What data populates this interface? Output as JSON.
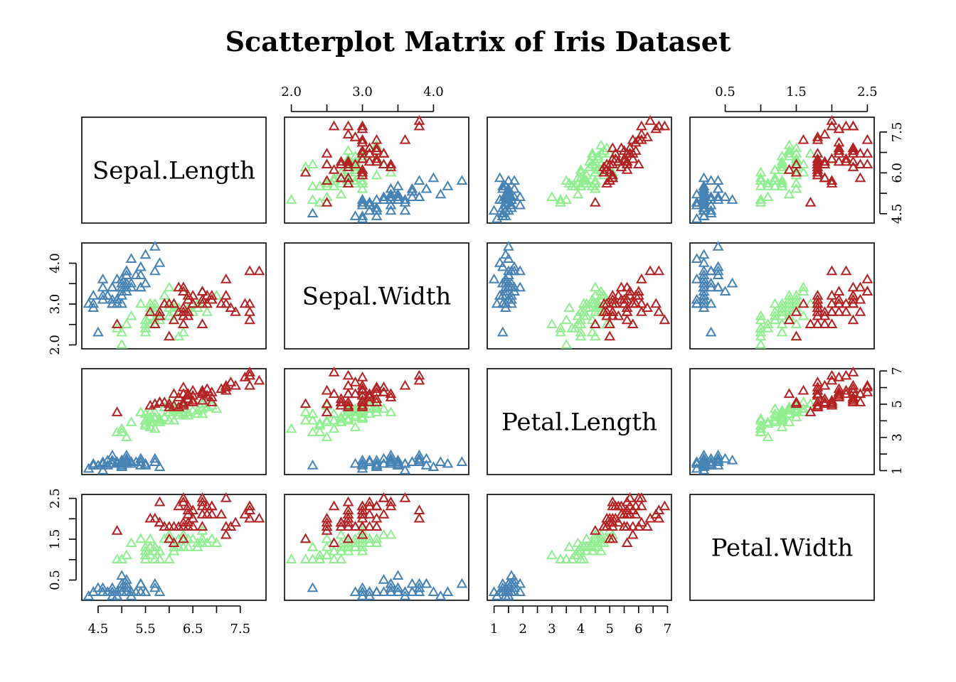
{
  "chart_data": {
    "type": "scatter",
    "title": "Scatterplot Matrix of Iris Dataset",
    "variables": [
      "Sepal.Length",
      "Sepal.Width",
      "Petal.Length",
      "Petal.Width"
    ],
    "ranges": [
      [
        4.3,
        7.9
      ],
      [
        2.0,
        4.4
      ],
      [
        1.0,
        6.9
      ],
      [
        0.1,
        2.5
      ]
    ],
    "ticks": {
      "Sepal.Length": [
        "4.5",
        "5.5",
        "6.5",
        "7.5"
      ],
      "Sepal.Length_right": [
        "4.5",
        "6.0",
        "7.5"
      ],
      "Sepal.Width": [
        "2.0",
        "3.0",
        "4.0"
      ],
      "Petal.Length": [
        "1",
        "2",
        "3",
        "4",
        "5",
        "6",
        "7"
      ],
      "Petal.Length_right": [
        "1",
        "3",
        "5",
        "7"
      ],
      "Petal.Width": [
        "0.5",
        "1.5",
        "2.5"
      ]
    },
    "marker": "triangle-open",
    "series": [
      {
        "color": "#4682B4",
        "points": [
          [
            5.1,
            3.5,
            1.4,
            0.2
          ],
          [
            4.9,
            3.0,
            1.4,
            0.2
          ],
          [
            4.7,
            3.2,
            1.3,
            0.2
          ],
          [
            4.6,
            3.1,
            1.5,
            0.2
          ],
          [
            5.0,
            3.6,
            1.4,
            0.2
          ],
          [
            5.4,
            3.9,
            1.7,
            0.4
          ],
          [
            4.6,
            3.4,
            1.4,
            0.3
          ],
          [
            5.0,
            3.4,
            1.5,
            0.2
          ],
          [
            4.4,
            2.9,
            1.4,
            0.2
          ],
          [
            4.9,
            3.1,
            1.5,
            0.1
          ],
          [
            5.4,
            3.7,
            1.5,
            0.2
          ],
          [
            4.8,
            3.4,
            1.6,
            0.2
          ],
          [
            4.8,
            3.0,
            1.4,
            0.1
          ],
          [
            4.3,
            3.0,
            1.1,
            0.1
          ],
          [
            5.8,
            4.0,
            1.2,
            0.2
          ],
          [
            5.7,
            4.4,
            1.5,
            0.4
          ],
          [
            5.4,
            3.9,
            1.3,
            0.4
          ],
          [
            5.1,
            3.5,
            1.4,
            0.3
          ],
          [
            5.7,
            3.8,
            1.7,
            0.3
          ],
          [
            5.1,
            3.8,
            1.5,
            0.3
          ],
          [
            5.4,
            3.4,
            1.7,
            0.2
          ],
          [
            5.1,
            3.7,
            1.5,
            0.4
          ],
          [
            4.6,
            3.6,
            1.0,
            0.2
          ],
          [
            5.1,
            3.3,
            1.7,
            0.5
          ],
          [
            4.8,
            3.4,
            1.9,
            0.2
          ],
          [
            5.0,
            3.0,
            1.6,
            0.2
          ],
          [
            5.0,
            3.4,
            1.6,
            0.4
          ],
          [
            5.2,
            3.5,
            1.5,
            0.2
          ],
          [
            5.2,
            3.4,
            1.4,
            0.2
          ],
          [
            4.7,
            3.2,
            1.6,
            0.2
          ],
          [
            4.8,
            3.1,
            1.6,
            0.2
          ],
          [
            5.4,
            3.4,
            1.5,
            0.4
          ],
          [
            5.2,
            4.1,
            1.5,
            0.1
          ],
          [
            5.5,
            4.2,
            1.4,
            0.2
          ],
          [
            4.9,
            3.1,
            1.5,
            0.2
          ],
          [
            5.0,
            3.2,
            1.2,
            0.2
          ],
          [
            5.5,
            3.5,
            1.3,
            0.2
          ],
          [
            4.9,
            3.6,
            1.4,
            0.1
          ],
          [
            4.4,
            3.0,
            1.3,
            0.2
          ],
          [
            5.1,
            3.4,
            1.5,
            0.2
          ],
          [
            5.0,
            3.5,
            1.3,
            0.3
          ],
          [
            4.5,
            2.3,
            1.3,
            0.3
          ],
          [
            4.4,
            3.2,
            1.3,
            0.2
          ],
          [
            5.0,
            3.5,
            1.6,
            0.6
          ],
          [
            5.1,
            3.8,
            1.9,
            0.4
          ],
          [
            4.8,
            3.0,
            1.4,
            0.3
          ],
          [
            5.1,
            3.8,
            1.6,
            0.2
          ],
          [
            4.6,
            3.2,
            1.4,
            0.2
          ],
          [
            5.3,
            3.7,
            1.5,
            0.2
          ],
          [
            5.0,
            3.3,
            1.4,
            0.2
          ]
        ]
      },
      {
        "color": "#90EE90",
        "points": [
          [
            7.0,
            3.2,
            4.7,
            1.4
          ],
          [
            6.4,
            3.2,
            4.5,
            1.5
          ],
          [
            6.9,
            3.1,
            4.9,
            1.5
          ],
          [
            5.5,
            2.3,
            4.0,
            1.3
          ],
          [
            6.5,
            2.8,
            4.6,
            1.5
          ],
          [
            5.7,
            2.8,
            4.5,
            1.3
          ],
          [
            6.3,
            3.3,
            4.7,
            1.6
          ],
          [
            4.9,
            2.4,
            3.3,
            1.0
          ],
          [
            6.6,
            2.9,
            4.6,
            1.3
          ],
          [
            5.2,
            2.7,
            3.9,
            1.4
          ],
          [
            5.0,
            2.0,
            3.5,
            1.0
          ],
          [
            5.9,
            3.0,
            4.2,
            1.5
          ],
          [
            6.0,
            2.2,
            4.0,
            1.0
          ],
          [
            6.1,
            2.9,
            4.7,
            1.4
          ],
          [
            5.6,
            2.9,
            3.6,
            1.3
          ],
          [
            6.7,
            3.1,
            4.4,
            1.4
          ],
          [
            5.6,
            3.0,
            4.5,
            1.5
          ],
          [
            5.8,
            2.7,
            4.1,
            1.0
          ],
          [
            6.2,
            2.2,
            4.5,
            1.5
          ],
          [
            5.6,
            2.5,
            3.9,
            1.1
          ],
          [
            5.9,
            3.2,
            4.8,
            1.8
          ],
          [
            6.1,
            2.8,
            4.0,
            1.3
          ],
          [
            6.3,
            2.5,
            4.9,
            1.5
          ],
          [
            6.1,
            2.8,
            4.7,
            1.2
          ],
          [
            6.4,
            2.9,
            4.3,
            1.3
          ],
          [
            6.6,
            3.0,
            4.4,
            1.4
          ],
          [
            6.8,
            2.8,
            4.8,
            1.4
          ],
          [
            6.7,
            3.0,
            5.0,
            1.7
          ],
          [
            6.0,
            2.9,
            4.5,
            1.5
          ],
          [
            5.7,
            2.6,
            3.5,
            1.0
          ],
          [
            5.5,
            2.4,
            3.8,
            1.1
          ],
          [
            5.5,
            2.4,
            3.7,
            1.0
          ],
          [
            5.8,
            2.7,
            3.9,
            1.2
          ],
          [
            6.0,
            2.7,
            5.1,
            1.6
          ],
          [
            5.4,
            3.0,
            4.5,
            1.5
          ],
          [
            6.0,
            3.4,
            4.5,
            1.6
          ],
          [
            6.7,
            3.1,
            4.7,
            1.5
          ],
          [
            6.3,
            2.3,
            4.4,
            1.3
          ],
          [
            5.6,
            3.0,
            4.1,
            1.3
          ],
          [
            5.5,
            2.5,
            4.0,
            1.3
          ],
          [
            5.5,
            2.6,
            4.4,
            1.2
          ],
          [
            6.1,
            3.0,
            4.6,
            1.4
          ],
          [
            5.8,
            2.6,
            4.0,
            1.2
          ],
          [
            5.0,
            2.3,
            3.3,
            1.0
          ],
          [
            5.6,
            2.7,
            4.2,
            1.3
          ],
          [
            5.7,
            3.0,
            4.2,
            1.2
          ],
          [
            5.7,
            2.9,
            4.2,
            1.3
          ],
          [
            6.2,
            2.9,
            4.3,
            1.3
          ],
          [
            5.1,
            2.5,
            3.0,
            1.1
          ],
          [
            5.7,
            2.8,
            4.1,
            1.3
          ]
        ]
      },
      {
        "color": "#B22222",
        "points": [
          [
            6.3,
            3.3,
            6.0,
            2.5
          ],
          [
            5.8,
            2.7,
            5.1,
            1.9
          ],
          [
            7.1,
            3.0,
            5.9,
            2.1
          ],
          [
            6.3,
            2.9,
            5.6,
            1.8
          ],
          [
            6.5,
            3.0,
            5.8,
            2.2
          ],
          [
            7.6,
            3.0,
            6.6,
            2.1
          ],
          [
            4.9,
            2.5,
            4.5,
            1.7
          ],
          [
            7.3,
            2.9,
            6.3,
            1.8
          ],
          [
            6.7,
            2.5,
            5.8,
            1.8
          ],
          [
            7.2,
            3.6,
            6.1,
            2.5
          ],
          [
            6.5,
            3.2,
            5.1,
            2.0
          ],
          [
            6.4,
            2.7,
            5.3,
            1.9
          ],
          [
            6.8,
            3.0,
            5.5,
            2.1
          ],
          [
            5.7,
            2.5,
            5.0,
            2.0
          ],
          [
            5.8,
            2.8,
            5.1,
            2.4
          ],
          [
            6.4,
            3.2,
            5.3,
            2.3
          ],
          [
            6.5,
            3.0,
            5.5,
            1.8
          ],
          [
            7.7,
            3.8,
            6.7,
            2.2
          ],
          [
            7.7,
            2.6,
            6.9,
            2.3
          ],
          [
            6.0,
            2.2,
            5.0,
            1.5
          ],
          [
            6.9,
            3.2,
            5.7,
            2.3
          ],
          [
            5.6,
            2.8,
            4.9,
            2.0
          ],
          [
            7.7,
            2.8,
            6.7,
            2.0
          ],
          [
            6.3,
            2.7,
            4.9,
            1.8
          ],
          [
            6.7,
            3.3,
            5.7,
            2.1
          ],
          [
            7.2,
            3.2,
            6.0,
            1.8
          ],
          [
            6.2,
            2.8,
            4.8,
            1.8
          ],
          [
            6.1,
            3.0,
            4.9,
            1.8
          ],
          [
            6.4,
            2.8,
            5.6,
            2.1
          ],
          [
            7.2,
            3.0,
            5.8,
            1.6
          ],
          [
            7.4,
            2.8,
            6.1,
            1.9
          ],
          [
            7.9,
            3.8,
            6.4,
            2.0
          ],
          [
            6.4,
            2.8,
            5.6,
            2.2
          ],
          [
            6.3,
            2.8,
            5.1,
            1.5
          ],
          [
            6.1,
            2.6,
            5.6,
            1.4
          ],
          [
            7.7,
            3.0,
            6.1,
            2.3
          ],
          [
            6.3,
            3.4,
            5.6,
            2.4
          ],
          [
            6.4,
            3.1,
            5.5,
            1.8
          ],
          [
            6.0,
            3.0,
            4.8,
            1.8
          ],
          [
            6.9,
            3.1,
            5.4,
            2.1
          ],
          [
            6.7,
            3.1,
            5.6,
            2.4
          ],
          [
            6.9,
            3.1,
            5.1,
            2.3
          ],
          [
            5.8,
            2.7,
            5.1,
            1.9
          ],
          [
            6.8,
            3.2,
            5.9,
            2.3
          ],
          [
            6.7,
            3.3,
            5.7,
            2.5
          ],
          [
            6.7,
            3.0,
            5.2,
            2.3
          ],
          [
            6.3,
            2.5,
            5.0,
            1.9
          ],
          [
            6.5,
            3.0,
            5.2,
            2.0
          ],
          [
            6.2,
            3.4,
            5.4,
            2.3
          ],
          [
            5.9,
            3.0,
            5.1,
            1.8
          ]
        ]
      }
    ]
  }
}
